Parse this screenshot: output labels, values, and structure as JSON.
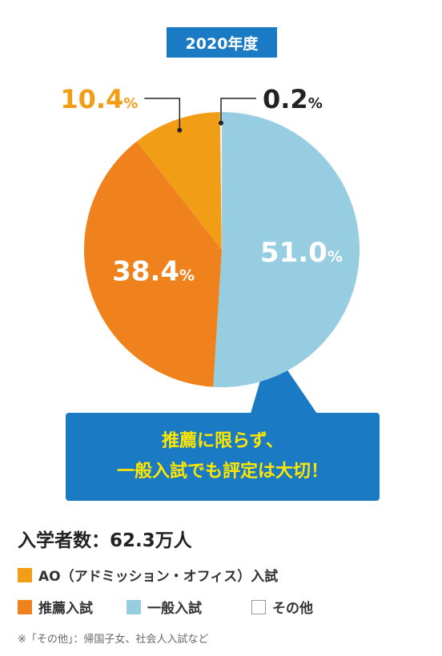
{
  "header": {
    "year": "2020年度"
  },
  "chart_data": {
    "type": "pie",
    "unit": "%",
    "slices": [
      {
        "name": "一般入試",
        "value": 51.0,
        "label": "51.0",
        "color": "#97cde0",
        "label_color": "#ffffff"
      },
      {
        "name": "推薦入試",
        "value": 38.4,
        "label": "38.4",
        "color": "#f0821e",
        "label_color": "#ffffff"
      },
      {
        "name": "AO（アドミッション・オフィス）入試",
        "value": 10.4,
        "label": "10.4",
        "color": "#f29d16",
        "label_color": "#f29d16"
      },
      {
        "name": "その他",
        "value": 0.2,
        "label": "0.2",
        "color": "#ffffff",
        "label_color": "#222222"
      }
    ],
    "legend": [
      "AO（アドミッション・オフィス）入試",
      "推薦入試",
      "一般入試",
      "その他"
    ]
  },
  "callout": {
    "line1": "推薦に限らず、",
    "line2": "一般入試でも評定は大切！"
  },
  "summary": {
    "total_label": "入学者数：62.3万人"
  },
  "note": "※「その他」：帰国子女、社会人入試など"
}
